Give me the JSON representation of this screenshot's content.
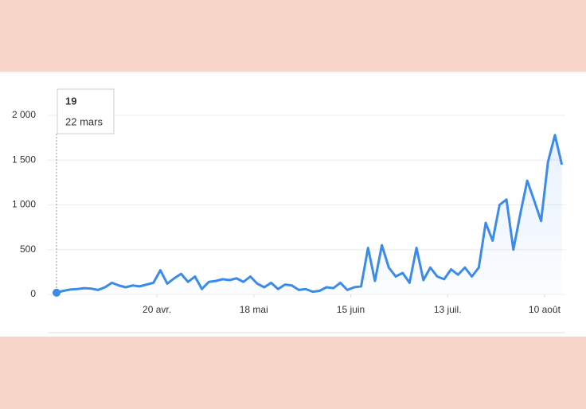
{
  "chart_data": {
    "type": "line",
    "x": [
      0,
      2,
      4,
      6,
      8,
      10,
      12,
      14,
      16,
      18,
      20,
      22,
      24,
      26,
      28,
      30,
      32,
      34,
      36,
      38,
      40,
      42,
      44,
      46,
      48,
      50,
      52,
      54,
      56,
      58,
      60,
      62,
      64,
      66,
      68,
      70,
      72,
      74,
      76,
      78,
      80,
      82,
      84,
      86,
      88,
      90,
      92,
      94,
      96,
      98,
      100,
      102,
      104,
      106,
      108,
      110,
      112,
      114,
      116,
      118,
      120,
      122,
      124,
      126,
      128,
      130,
      132,
      134,
      136,
      138,
      140,
      142,
      144,
      146
    ],
    "series": [
      {
        "color": "#3b8beb",
        "values": [
          19,
          40,
          55,
          60,
          70,
          65,
          50,
          80,
          130,
          100,
          80,
          100,
          90,
          110,
          130,
          270,
          120,
          180,
          230,
          140,
          200,
          60,
          140,
          150,
          170,
          160,
          180,
          140,
          200,
          120,
          80,
          130,
          60,
          110,
          100,
          50,
          60,
          30,
          40,
          80,
          70,
          130,
          50,
          80,
          90,
          520,
          150,
          550,
          300,
          200,
          240,
          130,
          520,
          160,
          300,
          200,
          170,
          280,
          220,
          300,
          200,
          300,
          800,
          600,
          1000,
          1060,
          500,
          900,
          1270,
          1050,
          820,
          1480,
          1780,
          1450
        ]
      }
    ],
    "xlim": [
      0,
      147
    ],
    "xticks": [
      {
        "value": 29,
        "label": "20 avr."
      },
      {
        "value": 57,
        "label": "18 mai"
      },
      {
        "value": 85,
        "label": "15 juin"
      },
      {
        "value": 113,
        "label": "13 juil."
      },
      {
        "value": 141,
        "label": "10 août"
      }
    ],
    "ylim": [
      0,
      2000
    ],
    "yticks": [
      0,
      500,
      {
        "value": 1000,
        "label": "1 000"
      },
      {
        "value": 1500,
        "label": "1 500"
      },
      {
        "value": 2000,
        "label": "2 000"
      }
    ],
    "grid": true,
    "tooltip": {
      "label": "22 mars"
    }
  }
}
